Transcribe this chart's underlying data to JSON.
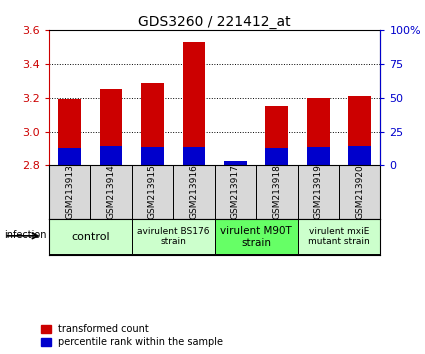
{
  "title": "GDS3260 / 221412_at",
  "samples": [
    "GSM213913",
    "GSM213914",
    "GSM213915",
    "GSM213916",
    "GSM213917",
    "GSM213918",
    "GSM213919",
    "GSM213920"
  ],
  "red_values": [
    3.19,
    3.25,
    3.29,
    3.53,
    2.81,
    3.15,
    3.2,
    3.21
  ],
  "blue_values_pct": [
    13.0,
    14.0,
    13.5,
    13.5,
    3.5,
    13.0,
    13.5,
    14.0
  ],
  "bar_bottom": 2.8,
  "ylim": [
    2.8,
    3.6
  ],
  "yticks": [
    2.8,
    3.0,
    3.2,
    3.4,
    3.6
  ],
  "right_ylim": [
    0,
    100
  ],
  "right_yticks": [
    0,
    25,
    50,
    75,
    100
  ],
  "right_yticklabels": [
    "0",
    "25",
    "50",
    "75",
    "100%"
  ],
  "red_color": "#cc0000",
  "blue_color": "#0000cc",
  "groups": [
    {
      "label": "control",
      "start": 0,
      "end": 1,
      "color": "#ccffcc",
      "fontsize": 8
    },
    {
      "label": "avirulent BS176\nstrain",
      "start": 2,
      "end": 3,
      "color": "#ccffcc",
      "fontsize": 6.5
    },
    {
      "label": "virulent M90T\nstrain",
      "start": 4,
      "end": 5,
      "color": "#66ff66",
      "fontsize": 7.5
    },
    {
      "label": "virulent mxiE\nmutant strain",
      "start": 6,
      "end": 7,
      "color": "#ccffcc",
      "fontsize": 6.5
    }
  ],
  "infection_label": "infection",
  "legend_red": "transformed count",
  "legend_blue": "percentile rank within the sample",
  "bar_width": 0.55,
  "xtick_fontsize": 6.5,
  "title_fontsize": 10,
  "grid_dotted_ticks": [
    3.0,
    3.2,
    3.4
  ]
}
